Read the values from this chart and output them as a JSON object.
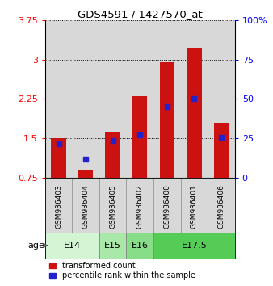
{
  "title": "GDS4591 / 1427570_at",
  "samples": [
    "GSM936403",
    "GSM936404",
    "GSM936405",
    "GSM936402",
    "GSM936400",
    "GSM936401",
    "GSM936406"
  ],
  "red_values": [
    1.5,
    0.9,
    1.62,
    2.3,
    2.95,
    3.22,
    1.8
  ],
  "blue_values": [
    1.4,
    1.1,
    1.45,
    1.57,
    2.1,
    2.26,
    1.52
  ],
  "ymin": 0.75,
  "ymax": 3.75,
  "yticks": [
    0.75,
    1.5,
    2.25,
    3.0,
    3.75
  ],
  "ytick_labels": [
    "0.75",
    "1.5",
    "2.25",
    "3",
    "3.75"
  ],
  "right_yticks": [
    0,
    25,
    50,
    75,
    100
  ],
  "right_ytick_labels": [
    "0",
    "25",
    "50",
    "75",
    "100%"
  ],
  "age_groups": [
    {
      "label": "E14",
      "start": 0,
      "end": 2,
      "color": "#d4f5d4"
    },
    {
      "label": "E15",
      "start": 2,
      "end": 3,
      "color": "#aae8aa"
    },
    {
      "label": "E16",
      "start": 3,
      "end": 4,
      "color": "#88dd88"
    },
    {
      "label": "E17.5",
      "start": 4,
      "end": 7,
      "color": "#55cc55"
    }
  ],
  "bar_color": "#cc1111",
  "blue_color": "#2222cc",
  "bar_width": 0.55,
  "sample_bg": "#d8d8d8",
  "legend_red": "transformed count",
  "legend_blue": "percentile rank within the sample",
  "age_label": "age"
}
